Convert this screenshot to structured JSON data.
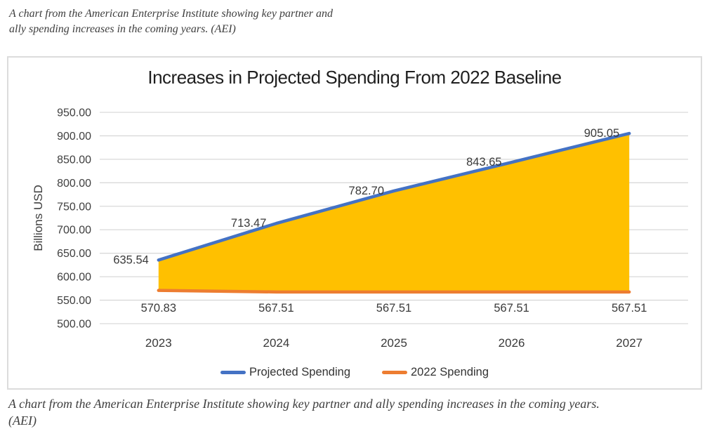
{
  "captions": {
    "top_line1": "A chart from the American Enterprise Institute showing key partner and",
    "top_line2": "ally spending increases in the coming years. (AEI)",
    "bottom_line1": "A chart from the American Enterprise Institute showing key partner and ally spending increases in the coming years.",
    "bottom_line2": "(AEI)"
  },
  "chart_data": {
    "type": "area",
    "title": "Increases in Projected Spending From 2022 Baseline",
    "xlabel": "",
    "ylabel": "Billions USD",
    "categories": [
      "2023",
      "2024",
      "2025",
      "2026",
      "2027"
    ],
    "series": [
      {
        "name": "Projected Spending",
        "color": "#4472C4",
        "values": [
          635.54,
          713.47,
          782.7,
          843.65,
          905.05
        ]
      },
      {
        "name": "2022 Spending",
        "color": "#ED7D31",
        "values": [
          570.83,
          567.51,
          567.51,
          567.51,
          567.51
        ]
      }
    ],
    "fill_color": "#FFC000",
    "ylim": [
      500,
      950
    ],
    "ytick_step": 50,
    "ytick_format_decimals": 2,
    "grid": true,
    "gridline_color": "#d9d9d9",
    "axis_text_color": "#404040",
    "data_label_color": "#3a3a3a",
    "legend_position": "bottom"
  }
}
